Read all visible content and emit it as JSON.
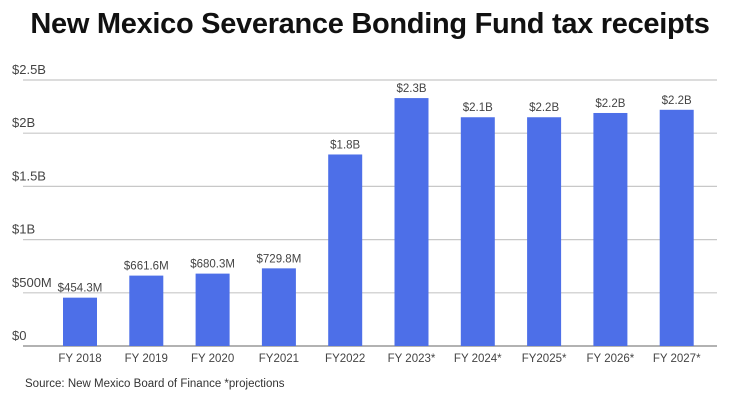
{
  "chart_data": {
    "type": "bar",
    "title": "New Mexico Severance Bonding Fund tax receipts",
    "xlabel": "",
    "ylabel": "",
    "ylim": [
      0,
      2.5
    ],
    "unit": "billions USD",
    "grid": true,
    "yticks": [
      {
        "value": 0,
        "label": "$0"
      },
      {
        "value": 0.5,
        "label": "$500M"
      },
      {
        "value": 1,
        "label": "$1B"
      },
      {
        "value": 1.5,
        "label": "$1.5B"
      },
      {
        "value": 2,
        "label": "$2B"
      },
      {
        "value": 2.5,
        "label": "$2.5B"
      }
    ],
    "categories": [
      "FY 2018",
      "FY 2019",
      "FY 2020",
      "FY2021",
      "FY2022",
      "FY 2023*",
      "FY 2024*",
      "FY2025*",
      "FY 2026*",
      "FY 2027*"
    ],
    "values": [
      0.4543,
      0.6616,
      0.6803,
      0.7298,
      1.8,
      2.33,
      2.15,
      2.15,
      2.19,
      2.22
    ],
    "data_labels": [
      "$454.3M",
      "$661.6M",
      "$680.3M",
      "$729.8M",
      "$1.8B",
      "$2.3B",
      "$2.1B",
      "$2.2B",
      "$2.2B",
      "$2.2B"
    ],
    "bar_color": "#4d6fe8",
    "source": "Source: New Mexico Board of Finance *projections"
  }
}
